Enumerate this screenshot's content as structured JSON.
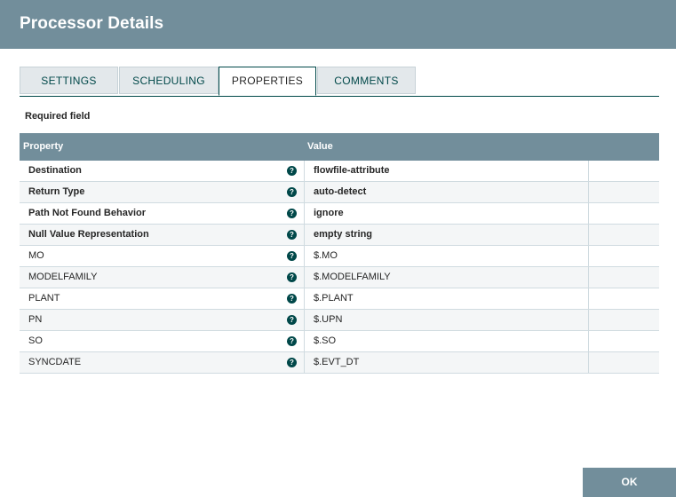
{
  "dialog": {
    "title": "Processor Details"
  },
  "tabs": [
    {
      "label": "SETTINGS"
    },
    {
      "label": "SCHEDULING"
    },
    {
      "label": "PROPERTIES"
    },
    {
      "label": "COMMENTS"
    }
  ],
  "active_tab": "PROPERTIES",
  "required_label": "Required field",
  "table": {
    "headers": {
      "property": "Property",
      "value": "Value"
    },
    "rows": [
      {
        "property": "Destination",
        "value": "flowfile-attribute",
        "required": true
      },
      {
        "property": "Return Type",
        "value": "auto-detect",
        "required": true
      },
      {
        "property": "Path Not Found Behavior",
        "value": "ignore",
        "required": true
      },
      {
        "property": "Null Value Representation",
        "value": "empty string",
        "required": true
      },
      {
        "property": "MO",
        "value": "$.MO",
        "required": false
      },
      {
        "property": "MODELFAMILY",
        "value": "$.MODELFAMILY",
        "required": false
      },
      {
        "property": "PLANT",
        "value": "$.PLANT",
        "required": false
      },
      {
        "property": "PN",
        "value": "$.UPN",
        "required": false
      },
      {
        "property": "SO",
        "value": "$.SO",
        "required": false
      },
      {
        "property": "SYNCDATE",
        "value": "$.EVT_DT",
        "required": false
      }
    ]
  },
  "buttons": {
    "ok": "OK"
  },
  "icons": {
    "help": "question-circle-icon"
  },
  "colors": {
    "header": "#728e9b",
    "accent": "#004849"
  }
}
